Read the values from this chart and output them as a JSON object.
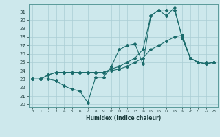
{
  "title": "",
  "xlabel": "Humidex (Indice chaleur)",
  "bg_color": "#cde8ec",
  "line_color": "#1a6b6b",
  "grid_color": "#aacdd4",
  "xlim": [
    -0.5,
    23.5
  ],
  "ylim": [
    19.7,
    31.9
  ],
  "yticks": [
    20,
    21,
    22,
    23,
    24,
    25,
    26,
    27,
    28,
    29,
    30,
    31
  ],
  "xticks": [
    0,
    1,
    2,
    3,
    4,
    5,
    6,
    7,
    8,
    9,
    10,
    11,
    12,
    13,
    14,
    15,
    16,
    17,
    18,
    19,
    20,
    21,
    22,
    23
  ],
  "series": [
    {
      "x": [
        0,
        1,
        2,
        3,
        4,
        5,
        6,
        7,
        8,
        9,
        10,
        11,
        12,
        13,
        14,
        15,
        16,
        17,
        18,
        19,
        20,
        21,
        22,
        23
      ],
      "y": [
        23,
        23,
        23,
        22.8,
        22.2,
        21.8,
        21.6,
        20.2,
        23.2,
        23.2,
        24.5,
        26.5,
        27,
        27.2,
        24.8,
        30.5,
        31.2,
        31.2,
        31.2,
        28,
        25.5,
        25,
        24.8,
        25
      ]
    },
    {
      "x": [
        0,
        1,
        2,
        3,
        4,
        5,
        6,
        7,
        8,
        9,
        10,
        11,
        12,
        13,
        14,
        15,
        16,
        17,
        18,
        19,
        20,
        21,
        22,
        23
      ],
      "y": [
        23,
        23,
        23.5,
        23.8,
        23.8,
        23.8,
        23.8,
        23.8,
        23.8,
        23.8,
        24.2,
        24.5,
        25,
        25.5,
        26.5,
        30.5,
        31.2,
        30.5,
        31.5,
        27.8,
        25.5,
        25,
        24.8,
        25
      ]
    },
    {
      "x": [
        0,
        1,
        2,
        3,
        4,
        5,
        6,
        7,
        8,
        9,
        10,
        11,
        12,
        13,
        14,
        15,
        16,
        17,
        18,
        19,
        20,
        21,
        22,
        23
      ],
      "y": [
        23,
        23,
        23.5,
        23.8,
        23.8,
        23.8,
        23.8,
        23.8,
        23.8,
        23.8,
        24.0,
        24.2,
        24.5,
        25.0,
        25.5,
        26.5,
        27.0,
        27.5,
        28.0,
        28.2,
        25.5,
        25,
        25,
        25
      ]
    }
  ]
}
